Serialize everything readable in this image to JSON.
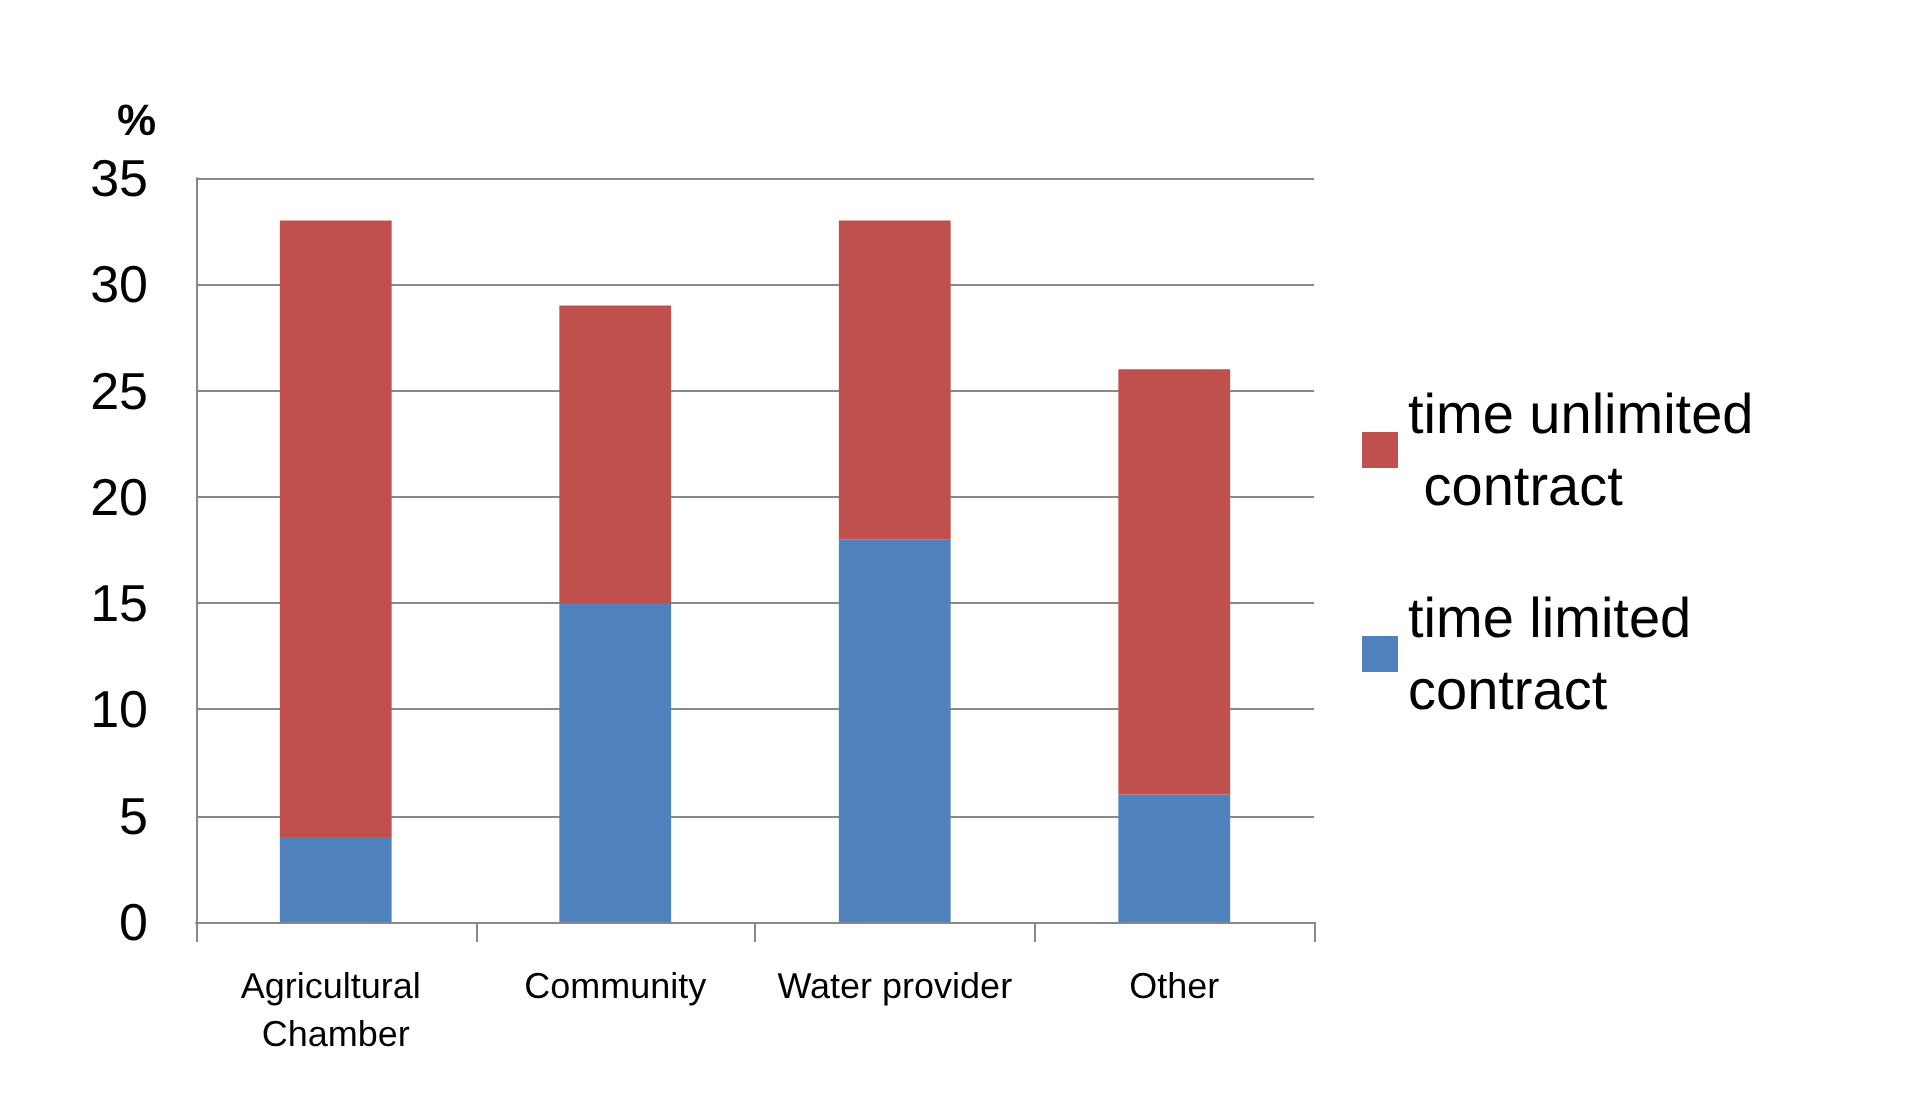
{
  "chart_data": {
    "type": "bar",
    "stacked": true,
    "ylabel": "%",
    "categories": [
      "Agricultural Chamber",
      "Community",
      "Water provider",
      "Other"
    ],
    "series": [
      {
        "name": "time limited contract",
        "color": "#4f81bd",
        "values": [
          4,
          15,
          18,
          6
        ]
      },
      {
        "name": "time unlimited contract",
        "color": "#c0504d",
        "values": [
          29,
          14,
          15,
          20
        ]
      }
    ],
    "ylim": [
      0,
      35
    ],
    "yticks": [
      0,
      5,
      10,
      15,
      20,
      25,
      30,
      35
    ],
    "grid": "y",
    "legend": "right"
  }
}
